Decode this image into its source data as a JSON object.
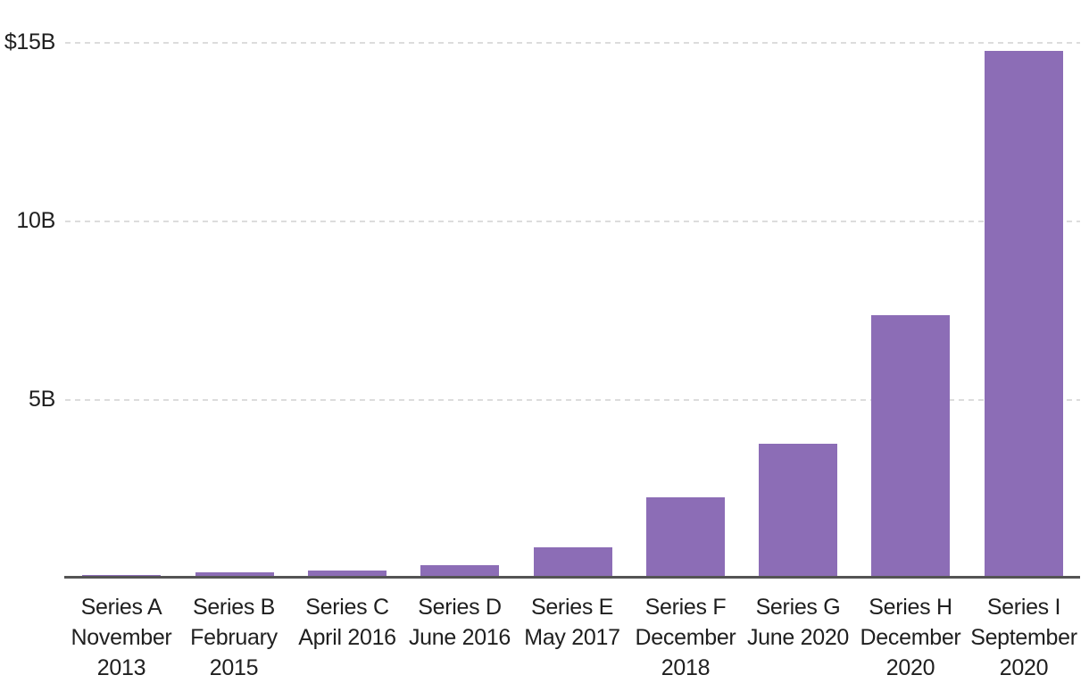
{
  "chart_data": {
    "type": "bar",
    "title": "",
    "categories": [
      {
        "name": "Series A",
        "date": "November 2013",
        "label_lines": [
          "Series A",
          "November",
          "2013"
        ]
      },
      {
        "name": "Series B",
        "date": "February 2015",
        "label_lines": [
          "Series B",
          "February",
          "2015"
        ]
      },
      {
        "name": "Series C",
        "date": "April 2016",
        "label_lines": [
          "Series C",
          "April 2016"
        ]
      },
      {
        "name": "Series D",
        "date": "June 2016",
        "label_lines": [
          "Series D",
          "June 2016"
        ]
      },
      {
        "name": "Series E",
        "date": "May 2017",
        "label_lines": [
          "Series E",
          "May 2017"
        ]
      },
      {
        "name": "Series F",
        "date": "December 2018",
        "label_lines": [
          "Series F",
          "December",
          "2018"
        ]
      },
      {
        "name": "Series G",
        "date": "June 2020",
        "label_lines": [
          "Series G",
          "June 2020"
        ]
      },
      {
        "name": "Series H",
        "date": "December 2020",
        "label_lines": [
          "Series H",
          "December",
          "2020"
        ]
      },
      {
        "name": "Series I",
        "date": "September 2020",
        "label_lines": [
          "Series I",
          "September",
          "2020"
        ]
      }
    ],
    "values": [
      0.03,
      0.1,
      0.15,
      0.3,
      0.8,
      2.2,
      3.7,
      7.3,
      14.7
    ],
    "value_unit": "USD billions",
    "xlabel": "",
    "ylabel": "",
    "ylim": [
      0,
      15
    ],
    "yticks": [
      {
        "label": "$15B",
        "value": 15
      },
      {
        "label": "10B",
        "value": 10
      },
      {
        "label": "5B",
        "value": 5
      }
    ],
    "grid": "horizontal-dashed",
    "legend": "none"
  },
  "colors": {
    "bar": "#8c6db6",
    "axis_line": "#545454",
    "gridline": "#dcdcdc",
    "label_text": "#1f1f1f",
    "background": "#ffffff"
  }
}
